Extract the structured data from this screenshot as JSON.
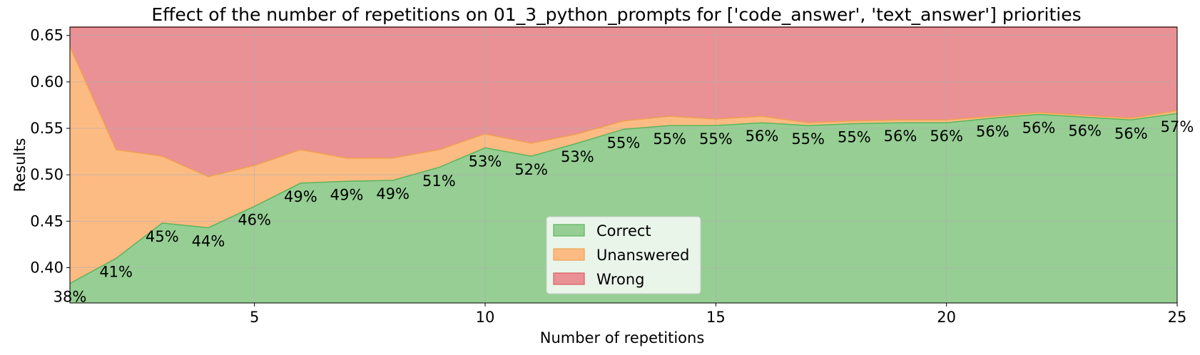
{
  "chart_data": {
    "type": "area",
    "title": "Effect of the number of repetitions on 01_3_python_prompts for ['code_answer', 'text_answer'] priorities",
    "xlabel": "Number of repetitions",
    "ylabel": "Results",
    "xlim": [
      1,
      25
    ],
    "ylim": [
      0.362,
      0.659
    ],
    "x_ticks": [
      5,
      10,
      15,
      20,
      25
    ],
    "y_ticks": [
      0.4,
      0.45,
      0.5,
      0.55,
      0.6,
      0.65
    ],
    "y_tick_labels": [
      "0.40",
      "0.45",
      "0.50",
      "0.55",
      "0.60",
      "0.65"
    ],
    "grid": true,
    "legend_position": "bottom-center",
    "x": [
      1,
      2,
      3,
      4,
      5,
      6,
      7,
      8,
      9,
      10,
      11,
      12,
      13,
      14,
      15,
      16,
      17,
      18,
      19,
      20,
      21,
      22,
      23,
      24,
      25
    ],
    "series": [
      {
        "name": "Correct",
        "color": "#96ce94",
        "edge": "#5bb55b",
        "values": [
          0.383,
          0.41,
          0.448,
          0.443,
          0.466,
          0.491,
          0.493,
          0.494,
          0.508,
          0.529,
          0.52,
          0.534,
          0.549,
          0.553,
          0.553,
          0.556,
          0.553,
          0.555,
          0.556,
          0.556,
          0.561,
          0.565,
          0.562,
          0.559,
          0.566
        ]
      },
      {
        "name": "Unanswered",
        "color": "#fdbb84",
        "edge": "#f0a050",
        "values": [
          0.255,
          0.117,
          0.072,
          0.055,
          0.044,
          0.036,
          0.025,
          0.024,
          0.019,
          0.015,
          0.014,
          0.01,
          0.009,
          0.01,
          0.007,
          0.007,
          0.003,
          0.003,
          0.003,
          0.003,
          0.002,
          0.002,
          0.002,
          0.002,
          0.003
        ]
      },
      {
        "name": "Wrong",
        "color": "#e99194",
        "edge": "#d95f5f",
        "values": [
          0.021,
          0.132,
          0.139,
          0.161,
          0.149,
          0.132,
          0.141,
          0.141,
          0.132,
          0.115,
          0.125,
          0.115,
          0.101,
          0.096,
          0.099,
          0.096,
          0.103,
          0.101,
          0.1,
          0.1,
          0.096,
          0.092,
          0.095,
          0.098,
          0.09
        ]
      }
    ],
    "data_labels": [
      "38%",
      "41%",
      "45%",
      "44%",
      "46%",
      "49%",
      "49%",
      "49%",
      "51%",
      "53%",
      "52%",
      "53%",
      "55%",
      "55%",
      "55%",
      "56%",
      "55%",
      "55%",
      "56%",
      "56%",
      "56%",
      "56%",
      "56%",
      "56%",
      "57%"
    ]
  }
}
